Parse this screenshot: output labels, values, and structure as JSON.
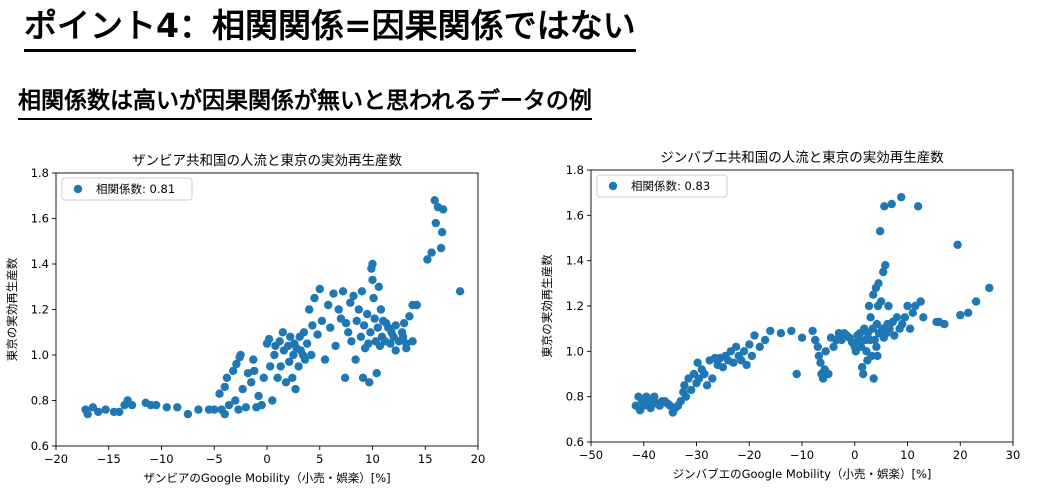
{
  "page": {
    "title": "ポイント4：相関関係=因果関係ではない",
    "subtitle": "相関係数は高いが因果関係が無いと思われるデータの例"
  },
  "colors": {
    "marker": "#1f77b4"
  },
  "chart_data": [
    {
      "type": "scatter",
      "title": "ザンビア共和国の人流と東京の実効再生産数",
      "xlabel": "ザンビアのGoogle Mobility（小売・娯楽）[%]",
      "ylabel": "東京の実効再生産数",
      "legend": "相関係数: 0.81",
      "legend_position": "top-left",
      "xlim": [
        -20,
        20
      ],
      "ylim": [
        0.6,
        1.8
      ],
      "xticks": [
        -20,
        -15,
        -10,
        -5,
        0,
        5,
        10,
        15,
        20
      ],
      "yticks": [
        0.6,
        0.8,
        1.0,
        1.2,
        1.4,
        1.6,
        1.8
      ],
      "points": [
        [
          -17.2,
          0.76
        ],
        [
          -17.0,
          0.74
        ],
        [
          -16.5,
          0.77
        ],
        [
          -16.0,
          0.75
        ],
        [
          -15.3,
          0.76
        ],
        [
          -14.5,
          0.75
        ],
        [
          -14.0,
          0.75
        ],
        [
          -13.5,
          0.78
        ],
        [
          -13.2,
          0.8
        ],
        [
          -12.8,
          0.78
        ],
        [
          -11.5,
          0.79
        ],
        [
          -11.0,
          0.78
        ],
        [
          -10.5,
          0.78
        ],
        [
          -9.5,
          0.77
        ],
        [
          -8.5,
          0.77
        ],
        [
          -7.5,
          0.74
        ],
        [
          -6.5,
          0.76
        ],
        [
          -5.5,
          0.76
        ],
        [
          -5.0,
          0.76
        ],
        [
          -4.5,
          0.83
        ],
        [
          -4.3,
          0.76
        ],
        [
          -4.0,
          0.86
        ],
        [
          -4.0,
          0.74
        ],
        [
          -3.8,
          0.9
        ],
        [
          -3.6,
          0.78
        ],
        [
          -3.2,
          0.93
        ],
        [
          -3.0,
          0.8
        ],
        [
          -2.9,
          0.96
        ],
        [
          -2.7,
          0.76
        ],
        [
          -2.6,
          0.99
        ],
        [
          -2.5,
          1.0
        ],
        [
          -2.3,
          0.85
        ],
        [
          -2.0,
          0.77
        ],
        [
          -1.8,
          0.92
        ],
        [
          -1.5,
          0.88
        ],
        [
          -1.3,
          0.98
        ],
        [
          -1.2,
          0.93
        ],
        [
          -1.0,
          0.77
        ],
        [
          -0.8,
          0.82
        ],
        [
          -0.5,
          0.78
        ],
        [
          -0.3,
          0.9
        ],
        [
          0.0,
          1.05
        ],
        [
          0.2,
          1.07
        ],
        [
          0.3,
          0.95
        ],
        [
          0.5,
          0.8
        ],
        [
          0.7,
          1.0
        ],
        [
          0.8,
          1.04
        ],
        [
          1.0,
          0.9
        ],
        [
          1.2,
          1.06
        ],
        [
          1.3,
          0.95
        ],
        [
          1.5,
          1.1
        ],
        [
          1.6,
          1.02
        ],
        [
          1.8,
          0.88
        ],
        [
          2.0,
          1.04
        ],
        [
          2.1,
          0.97
        ],
        [
          2.2,
          1.08
        ],
        [
          2.4,
          0.9
        ],
        [
          2.5,
          1.0
        ],
        [
          2.6,
          1.05
        ],
        [
          2.7,
          0.85
        ],
        [
          2.8,
          1.03
        ],
        [
          3.0,
          0.95
        ],
        [
          3.1,
          1.08
        ],
        [
          3.2,
          1.02
        ],
        [
          3.4,
          1.0
        ],
        [
          3.5,
          1.1
        ],
        [
          3.6,
          0.98
        ],
        [
          3.8,
          1.05
        ],
        [
          4.0,
          1.2
        ],
        [
          4.2,
          1.0
        ],
        [
          4.3,
          1.13
        ],
        [
          4.5,
          1.25
        ],
        [
          4.8,
          1.09
        ],
        [
          5.0,
          1.29
        ],
        [
          5.2,
          1.15
        ],
        [
          5.5,
          0.98
        ],
        [
          5.8,
          1.22
        ],
        [
          6.0,
          1.12
        ],
        [
          6.3,
          1.27
        ],
        [
          6.5,
          1.04
        ],
        [
          6.8,
          1.2
        ],
        [
          7.0,
          1.16
        ],
        [
          7.2,
          1.28
        ],
        [
          7.4,
          0.9
        ],
        [
          7.5,
          1.14
        ],
        [
          7.7,
          1.1
        ],
        [
          7.9,
          1.23
        ],
        [
          8.0,
          1.06
        ],
        [
          8.2,
          1.26
        ],
        [
          8.4,
          0.98
        ],
        [
          8.5,
          1.15
        ],
        [
          8.7,
          1.2
        ],
        [
          8.9,
          1.08
        ],
        [
          9.0,
          1.28
        ],
        [
          9.1,
          0.9
        ],
        [
          9.2,
          1.13
        ],
        [
          9.3,
          1.03
        ],
        [
          9.5,
          1.18
        ],
        [
          9.6,
          1.05
        ],
        [
          9.7,
          0.88
        ],
        [
          9.8,
          1.1
        ],
        [
          9.9,
          1.38
        ],
        [
          10.0,
          1.4
        ],
        [
          10.0,
          1.33
        ],
        [
          10.1,
          1.25
        ],
        [
          10.2,
          1.16
        ],
        [
          10.3,
          1.06
        ],
        [
          10.4,
          0.92
        ],
        [
          10.5,
          1.12
        ],
        [
          10.6,
          1.3
        ],
        [
          10.7,
          1.04
        ],
        [
          10.8,
          1.2
        ],
        [
          10.9,
          1.08
        ],
        [
          11.0,
          1.15
        ],
        [
          11.2,
          1.06
        ],
        [
          11.5,
          1.12
        ],
        [
          11.7,
          1.05
        ],
        [
          12.0,
          1.08
        ],
        [
          12.2,
          1.13
        ],
        [
          12.5,
          1.06
        ],
        [
          12.8,
          1.1
        ],
        [
          13.0,
          1.14
        ],
        [
          13.2,
          1.05
        ],
        [
          13.5,
          1.17
        ],
        [
          13.8,
          1.06
        ],
        [
          13.2,
          1.03
        ],
        [
          12.9,
          1.08
        ],
        [
          12.2,
          1.02
        ],
        [
          11.8,
          1.1
        ],
        [
          11.3,
          1.14
        ],
        [
          13.8,
          1.22
        ],
        [
          14.2,
          1.22
        ],
        [
          15.2,
          1.42
        ],
        [
          15.6,
          1.45
        ],
        [
          15.9,
          1.68
        ],
        [
          16.0,
          1.58
        ],
        [
          16.2,
          1.65
        ],
        [
          16.5,
          1.47
        ],
        [
          16.6,
          1.54
        ],
        [
          16.7,
          1.64
        ],
        [
          18.3,
          1.28
        ]
      ]
    },
    {
      "type": "scatter",
      "title": "ジンバブエ共和国の人流と東京の実効再生産数",
      "xlabel": "ジンバブエのGoogle Mobility（小売・娯楽）[%]",
      "ylabel": "東京の実効再生産数",
      "legend": "相関係数: 0.83",
      "legend_position": "top-left",
      "xlim": [
        -50,
        30
      ],
      "ylim": [
        0.6,
        1.8
      ],
      "xticks": [
        -50,
        -40,
        -30,
        -20,
        -10,
        0,
        10,
        20,
        30
      ],
      "yticks": [
        0.6,
        0.8,
        1.0,
        1.2,
        1.4,
        1.6,
        1.8
      ],
      "points": [
        [
          -41.5,
          0.76
        ],
        [
          -41.0,
          0.8
        ],
        [
          -40.7,
          0.74
        ],
        [
          -40.3,
          0.78
        ],
        [
          -40.0,
          0.76
        ],
        [
          -39.5,
          0.8
        ],
        [
          -39.0,
          0.77
        ],
        [
          -38.7,
          0.75
        ],
        [
          -38.3,
          0.78
        ],
        [
          -38.0,
          0.8
        ],
        [
          -37.5,
          0.77
        ],
        [
          -37.0,
          0.76
        ],
        [
          -36.5,
          0.78
        ],
        [
          -36.0,
          0.78
        ],
        [
          -35.5,
          0.77
        ],
        [
          -35.0,
          0.76
        ],
        [
          -34.5,
          0.73
        ],
        [
          -34.0,
          0.75
        ],
        [
          -33.5,
          0.76
        ],
        [
          -33.0,
          0.78
        ],
        [
          -32.5,
          0.82
        ],
        [
          -32.3,
          0.85
        ],
        [
          -32.0,
          0.8
        ],
        [
          -31.5,
          0.88
        ],
        [
          -31.0,
          0.83
        ],
        [
          -30.5,
          0.9
        ],
        [
          -30.0,
          0.86
        ],
        [
          -29.8,
          0.95
        ],
        [
          -29.5,
          0.88
        ],
        [
          -29.0,
          0.92
        ],
        [
          -28.5,
          0.9
        ],
        [
          -28.0,
          0.85
        ],
        [
          -27.5,
          0.96
        ],
        [
          -27.0,
          0.88
        ],
        [
          -26.5,
          0.97
        ],
        [
          -26.0,
          0.94
        ],
        [
          -25.5,
          0.97
        ],
        [
          -25.0,
          0.93
        ],
        [
          -24.5,
          0.98
        ],
        [
          -24.0,
          0.96
        ],
        [
          -23.5,
          1.0
        ],
        [
          -23.0,
          0.95
        ],
        [
          -22.5,
          1.02
        ],
        [
          -22.0,
          0.98
        ],
        [
          -21.5,
          0.96
        ],
        [
          -21.0,
          1.0
        ],
        [
          -20.5,
          0.94
        ],
        [
          -20.0,
          1.03
        ],
        [
          -19.5,
          0.98
        ],
        [
          -19.0,
          1.07
        ],
        [
          -18.0,
          1.02
        ],
        [
          -17.0,
          1.05
        ],
        [
          -16.0,
          1.09
        ],
        [
          -14.0,
          1.08
        ],
        [
          -12.0,
          1.09
        ],
        [
          -11.0,
          0.9
        ],
        [
          -10.0,
          1.06
        ],
        [
          -8.0,
          1.09
        ],
        [
          -7.5,
          1.05
        ],
        [
          -7.0,
          1.02
        ],
        [
          -6.8,
          0.98
        ],
        [
          -6.5,
          0.95
        ],
        [
          -6.3,
          0.9
        ],
        [
          -6.0,
          0.88
        ],
        [
          -5.7,
          0.92
        ],
        [
          -5.5,
          1.0
        ],
        [
          -5.0,
          0.9
        ],
        [
          -4.5,
          1.06
        ],
        [
          -4.0,
          1.02
        ],
        [
          -3.5,
          1.05
        ],
        [
          -3.0,
          1.08
        ],
        [
          -2.5,
          1.05
        ],
        [
          -2.0,
          1.08
        ],
        [
          -1.5,
          1.07
        ],
        [
          -1.0,
          1.06
        ],
        [
          -0.5,
          1.04
        ],
        [
          0.0,
          1.02
        ],
        [
          0.2,
          1.0
        ],
        [
          0.5,
          1.07
        ],
        [
          0.8,
          1.05
        ],
        [
          1.0,
          1.08
        ],
        [
          1.2,
          1.02
        ],
        [
          1.4,
          0.93
        ],
        [
          1.6,
          0.9
        ],
        [
          1.8,
          1.1
        ],
        [
          2.0,
          1.05
        ],
        [
          2.2,
          1.0
        ],
        [
          2.4,
          0.96
        ],
        [
          2.5,
          1.08
        ],
        [
          2.7,
          1.2
        ],
        [
          2.9,
          1.05
        ],
        [
          3.0,
          1.15
        ],
        [
          3.2,
          0.98
        ],
        [
          3.4,
          1.1
        ],
        [
          3.5,
          1.25
        ],
        [
          3.6,
          0.88
        ],
        [
          3.8,
          1.05
        ],
        [
          4.0,
          1.28
        ],
        [
          4.1,
          1.02
        ],
        [
          4.2,
          1.12
        ],
        [
          4.3,
          0.98
        ],
        [
          4.4,
          1.2
        ],
        [
          4.5,
          1.3
        ],
        [
          4.6,
          1.08
        ],
        [
          4.8,
          1.53
        ],
        [
          5.0,
          1.22
        ],
        [
          5.2,
          1.1
        ],
        [
          5.4,
          1.35
        ],
        [
          5.5,
          1.06
        ],
        [
          5.6,
          1.64
        ],
        [
          5.8,
          1.38
        ],
        [
          6.0,
          1.08
        ],
        [
          6.2,
          1.12
        ],
        [
          6.4,
          1.2
        ],
        [
          6.6,
          1.1
        ],
        [
          7.0,
          1.65
        ],
        [
          7.2,
          1.13
        ],
        [
          7.5,
          1.07
        ],
        [
          8.0,
          1.15
        ],
        [
          8.5,
          1.1
        ],
        [
          8.8,
          1.68
        ],
        [
          9.0,
          1.12
        ],
        [
          9.5,
          1.15
        ],
        [
          10.0,
          1.2
        ],
        [
          10.5,
          1.1
        ],
        [
          11.0,
          1.17
        ],
        [
          11.5,
          1.2
        ],
        [
          12.0,
          1.64
        ],
        [
          12.5,
          1.22
        ],
        [
          13.0,
          1.15
        ],
        [
          15.5,
          1.13
        ],
        [
          16.0,
          1.13
        ],
        [
          17.0,
          1.12
        ],
        [
          19.5,
          1.47
        ],
        [
          20.0,
          1.16
        ],
        [
          21.5,
          1.17
        ],
        [
          23.0,
          1.22
        ],
        [
          25.5,
          1.28
        ]
      ]
    }
  ]
}
